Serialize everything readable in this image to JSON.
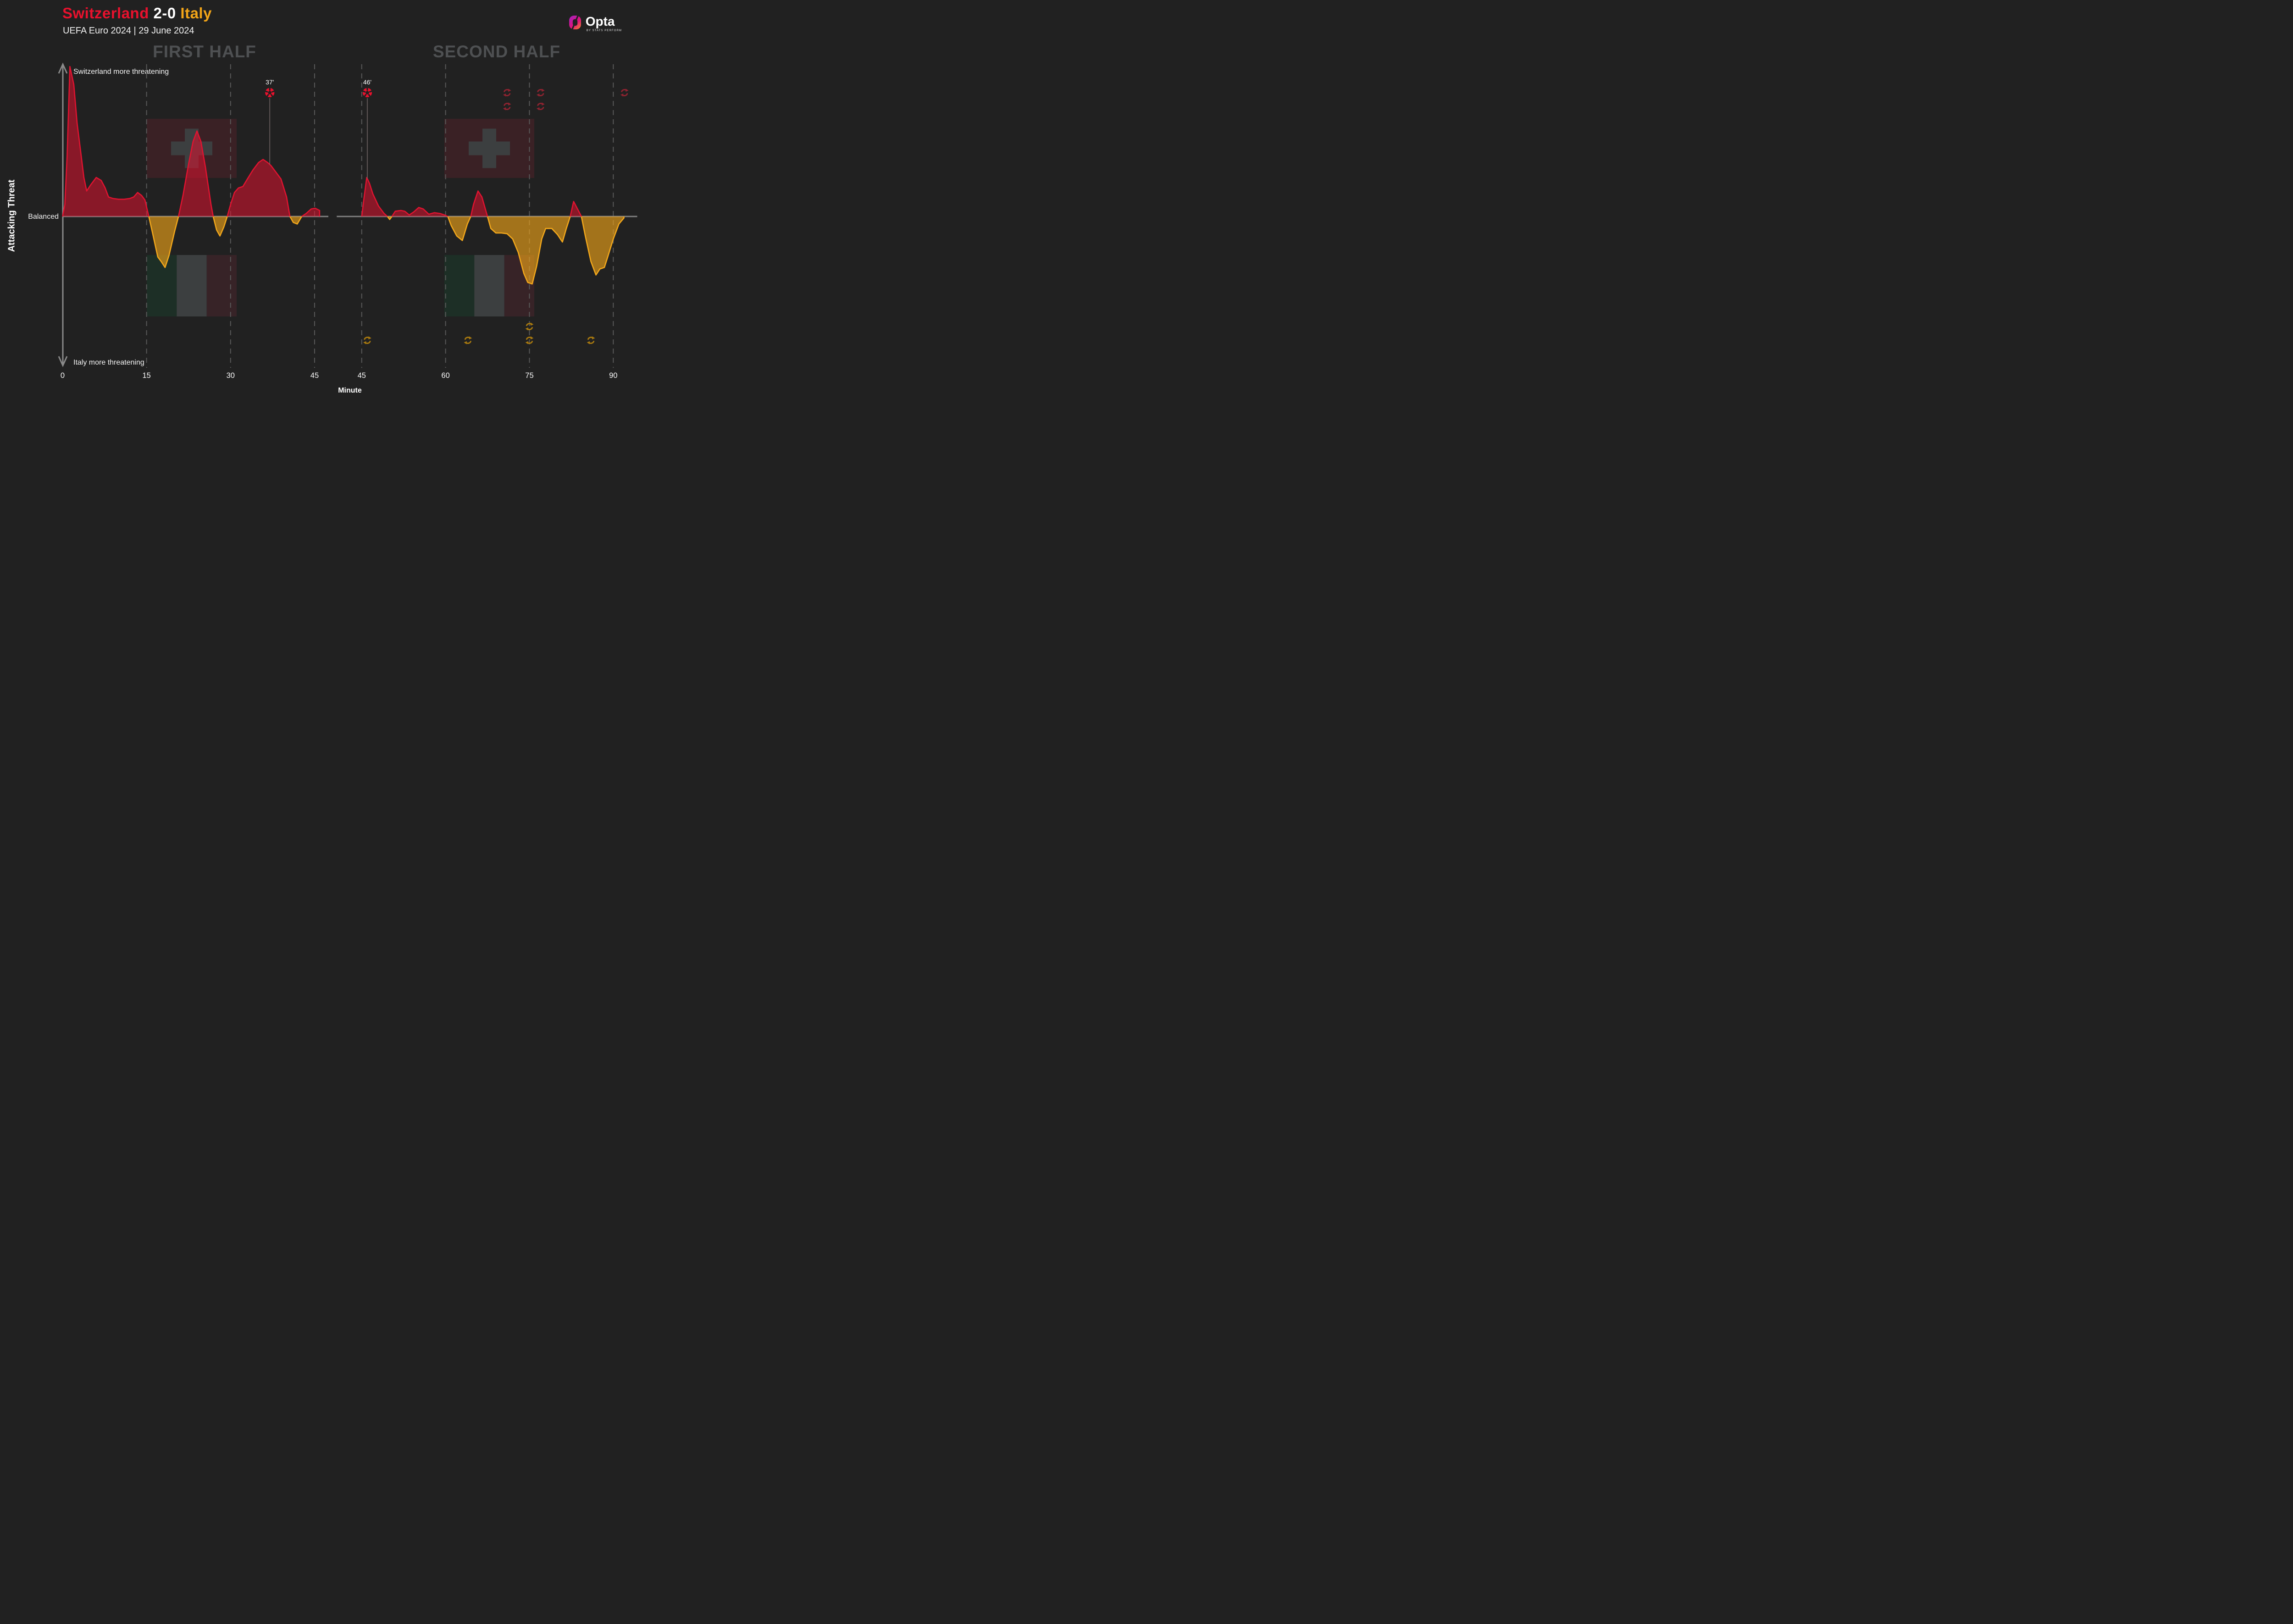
{
  "header": {
    "home": "Switzerland",
    "score": "2-0",
    "away": "Italy",
    "subtitle": "UEFA Euro 2024 | 29 June 2024",
    "home_color": "#e8112d",
    "away_color": "#f2a518",
    "score_color": "#ffffff"
  },
  "branding": {
    "logo": "Opta",
    "byline": "BY STATS PERFORM"
  },
  "panels": {
    "first": "FIRST HALF",
    "second": "SECOND HALF"
  },
  "y_axis": {
    "label": "Attacking Threat",
    "top_label": "Switzerland more threatening",
    "middle_label": "Balanced",
    "bottom_label": "Italy more threatening"
  },
  "x_axis": {
    "label": "Minute",
    "first_half_ticks": [
      0,
      15,
      30,
      45
    ],
    "second_half_ticks": [
      45,
      60,
      75,
      90
    ]
  },
  "chart_data": {
    "type": "area",
    "title": "Attacking Threat momentum, Switzerland positive (red) vs Italy negative (yellow), value range -100..100",
    "colors": {
      "switzerland_stroke": "#e01330",
      "switzerland_fill": "rgba(224,19,48,0.55)",
      "italy_stroke": "#f2a71b",
      "italy_fill": "rgba(244,166,25,0.62)",
      "baseline": "#7e7e7e",
      "gridline": "#585858",
      "axis_arrow": "#8a8a8a",
      "header_gray": "#4e5052",
      "goal_line": "#776b6b",
      "goal_ball": "#e8112d",
      "sub_red": "#8e2330",
      "sub_yellow": "#a8790f",
      "swiss_flag_bg": "#3a2125",
      "swiss_flag_cross": "#3c3f40",
      "italy_flag_green": "#1d2f26",
      "italy_flag_white": "#3c3f40",
      "italy_flag_red": "#372327",
      "background": "#212121"
    },
    "halves": [
      {
        "name": "FIRST HALF",
        "minute_range": [
          0,
          46
        ],
        "gridline_minutes": [
          15,
          30,
          45
        ],
        "points": [
          [
            0,
            0
          ],
          [
            0.4,
            8
          ],
          [
            0.8,
            40
          ],
          [
            1.3,
            100
          ],
          [
            2,
            88
          ],
          [
            2.6,
            62
          ],
          [
            3.2,
            44
          ],
          [
            3.8,
            26
          ],
          [
            4.3,
            17
          ],
          [
            5,
            21
          ],
          [
            6,
            26
          ],
          [
            6.9,
            24
          ],
          [
            7.6,
            19
          ],
          [
            8.2,
            13
          ],
          [
            9,
            12
          ],
          [
            10,
            11.5
          ],
          [
            11,
            11.5
          ],
          [
            12,
            12
          ],
          [
            12.7,
            13
          ],
          [
            13.4,
            16
          ],
          [
            14.1,
            14
          ],
          [
            14.7,
            11
          ],
          [
            15.4,
            0
          ],
          [
            16,
            -10
          ],
          [
            17,
            -27
          ],
          [
            17.6,
            -30
          ],
          [
            18.3,
            -34
          ],
          [
            19,
            -26
          ],
          [
            20,
            -10
          ],
          [
            20.7,
            0
          ],
          [
            21.5,
            14
          ],
          [
            22.5,
            35
          ],
          [
            23.3,
            50
          ],
          [
            24,
            57
          ],
          [
            24.7,
            50
          ],
          [
            25.5,
            33
          ],
          [
            26.5,
            8
          ],
          [
            26.9,
            0
          ],
          [
            27.5,
            -9
          ],
          [
            28.1,
            -13
          ],
          [
            28.8,
            -7
          ],
          [
            29.4,
            0
          ],
          [
            30,
            8
          ],
          [
            30.7,
            16
          ],
          [
            31.4,
            19
          ],
          [
            32.2,
            20
          ],
          [
            33,
            25
          ],
          [
            34,
            31
          ],
          [
            35,
            36
          ],
          [
            35.8,
            38
          ],
          [
            36.6,
            36
          ],
          [
            37.2,
            34
          ],
          [
            38,
            30
          ],
          [
            39,
            25
          ],
          [
            40,
            13
          ],
          [
            40.6,
            0
          ],
          [
            41.2,
            -4
          ],
          [
            41.9,
            -5
          ],
          [
            42.7,
            0
          ],
          [
            43.5,
            2
          ],
          [
            44.4,
            5
          ],
          [
            45.1,
            5.5
          ],
          [
            45.9,
            4
          ]
        ]
      },
      {
        "name": "SECOND HALF",
        "minute_range": [
          45,
          92
        ],
        "gridline_minutes": [
          45,
          60,
          75,
          90
        ],
        "points": [
          [
            45,
            0
          ],
          [
            45.4,
            12
          ],
          [
            45.9,
            26
          ],
          [
            46.4,
            22
          ],
          [
            47,
            15
          ],
          [
            48,
            7
          ],
          [
            49,
            2
          ],
          [
            49.6,
            0
          ],
          [
            50,
            -2
          ],
          [
            50.4,
            0
          ],
          [
            51,
            3.5
          ],
          [
            52,
            4
          ],
          [
            52.7,
            3.5
          ],
          [
            53.5,
            1
          ],
          [
            54.3,
            3
          ],
          [
            55.2,
            6
          ],
          [
            56,
            5
          ],
          [
            57,
            1.5
          ],
          [
            58,
            2.5
          ],
          [
            59,
            2
          ],
          [
            59.8,
            1
          ],
          [
            60.4,
            0
          ],
          [
            61,
            -6
          ],
          [
            62,
            -13
          ],
          [
            63,
            -16
          ],
          [
            63.9,
            -5
          ],
          [
            64.5,
            0
          ],
          [
            65,
            8
          ],
          [
            65.8,
            17
          ],
          [
            66.5,
            13
          ],
          [
            67.5,
            0
          ],
          [
            68.1,
            -8
          ],
          [
            69,
            -11
          ],
          [
            70,
            -11
          ],
          [
            71,
            -11.5
          ],
          [
            72,
            -15
          ],
          [
            73,
            -24
          ],
          [
            74,
            -38
          ],
          [
            74.7,
            -44
          ],
          [
            75.5,
            -45
          ],
          [
            76.3,
            -33
          ],
          [
            77.2,
            -15
          ],
          [
            77.9,
            -8
          ],
          [
            79,
            -8
          ],
          [
            80,
            -12
          ],
          [
            80.9,
            -17
          ],
          [
            81.6,
            -8
          ],
          [
            82.3,
            0
          ],
          [
            82.9,
            10
          ],
          [
            83.6,
            5
          ],
          [
            84.3,
            0
          ],
          [
            85,
            -13
          ],
          [
            86,
            -30
          ],
          [
            86.9,
            -39
          ],
          [
            87.6,
            -35
          ],
          [
            88.4,
            -34
          ],
          [
            89,
            -27
          ],
          [
            90,
            -15
          ],
          [
            91,
            -5
          ],
          [
            91.9,
            -1
          ]
        ]
      }
    ],
    "annotations": {
      "goals": [
        {
          "team": "Switzerland",
          "half": 1,
          "minute": 37,
          "label": "37'"
        },
        {
          "team": "Switzerland",
          "half": 2,
          "minute": 46,
          "label": "46'"
        }
      ],
      "substitutions": [
        {
          "team": "Switzerland",
          "minute": 71,
          "count": 2
        },
        {
          "team": "Switzerland",
          "minute": 77,
          "count": 2
        },
        {
          "team": "Switzerland",
          "minute": 92,
          "count": 1
        },
        {
          "team": "Italy",
          "minute": 46,
          "count": 1
        },
        {
          "team": "Italy",
          "minute": 64,
          "count": 1
        },
        {
          "team": "Italy",
          "minute": 75,
          "count": 2
        },
        {
          "team": "Italy",
          "minute": 86,
          "count": 1
        }
      ]
    }
  }
}
